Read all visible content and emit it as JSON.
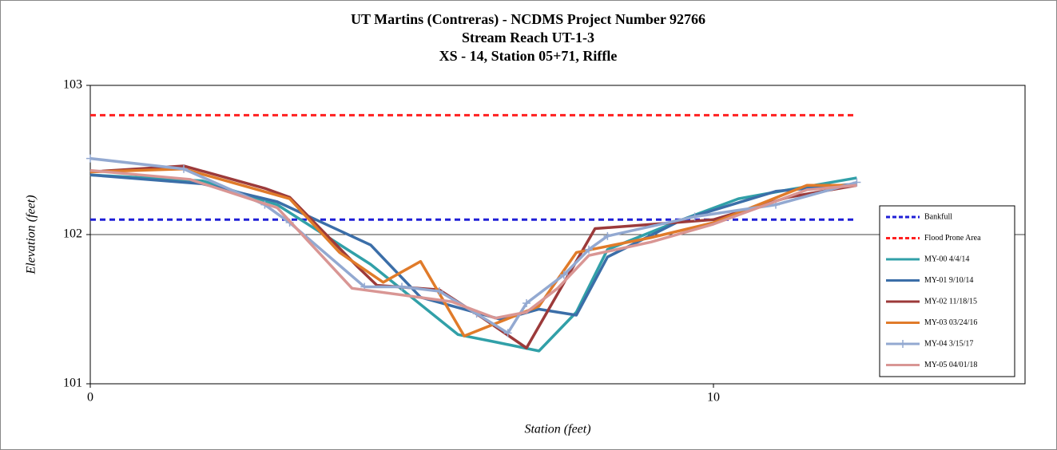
{
  "chart_data": {
    "type": "line",
    "title": [
      "UT Martins (Contreras) - NCDMS Project Number 92766",
      "Stream Reach UT-1-3",
      "XS - 14, Station 05+71, Riffle"
    ],
    "x_label": "Station (feet)",
    "y_label": "Elevation (feet)",
    "xlim": [
      0,
      15
    ],
    "xticks": [
      0,
      10
    ],
    "ylim": [
      101,
      103
    ],
    "yticks": [
      101,
      102,
      103
    ],
    "grid": true,
    "legend": "right",
    "series": [
      {
        "name": "Bankfull",
        "color": "#1f1fd6",
        "dashed": true,
        "x": [
          0,
          12.3
        ],
        "values": [
          102.1,
          102.1
        ]
      },
      {
        "name": "Flood Prone Area",
        "color": "#ff2020",
        "dashed": true,
        "x": [
          0,
          12.3
        ],
        "values": [
          102.8,
          102.8
        ]
      },
      {
        "name": "MY-00 4/4/14",
        "color": "#31a0a8",
        "x": [
          0,
          1.8,
          3,
          4.5,
          5.9,
          6.5,
          7.2,
          7.8,
          8.3,
          9.5,
          10.4,
          11.2,
          12.3
        ],
        "values": [
          102.4,
          102.36,
          102.2,
          101.8,
          101.33,
          101.28,
          101.22,
          101.48,
          101.9,
          102.1,
          102.24,
          102.3,
          102.38
        ]
      },
      {
        "name": "MY-01 9/10/14",
        "color": "#3b6ea8",
        "x": [
          0,
          1.8,
          3,
          4.5,
          5.3,
          6.6,
          7.2,
          7.8,
          8.3,
          9.5,
          11,
          12.3
        ],
        "values": [
          102.4,
          102.34,
          102.22,
          101.93,
          101.58,
          101.43,
          101.5,
          101.46,
          101.85,
          102.1,
          102.29,
          102.34
        ]
      },
      {
        "name": "MY-02 11/18/15",
        "color": "#9c3a3a",
        "x": [
          0,
          1.5,
          2.8,
          3.2,
          4.3,
          4.6,
          5.6,
          6.3,
          7.0,
          8.1,
          10,
          11.2,
          12.3
        ],
        "values": [
          102.42,
          102.46,
          102.31,
          102.25,
          101.78,
          101.66,
          101.63,
          101.44,
          101.24,
          102.04,
          102.1,
          102.25,
          102.33
        ]
      },
      {
        "name": "MY-03 03/24/16",
        "color": "#e07b2a",
        "x": [
          0,
          1.5,
          3.2,
          4.0,
          4.7,
          5.3,
          6.0,
          6.6,
          7.2,
          7.8,
          9,
          10,
          11.5,
          12.3
        ],
        "values": [
          102.42,
          102.44,
          102.24,
          101.88,
          101.68,
          101.82,
          101.32,
          101.42,
          101.52,
          101.88,
          101.98,
          102.08,
          102.33,
          102.33
        ]
      },
      {
        "name": "MY-04 3/15/17",
        "color": "#93a9d1",
        "markers": true,
        "x": [
          0,
          1.5,
          2.8,
          3.2,
          4.4,
          5,
          5.6,
          6.2,
          6.7,
          7.0,
          7.6,
          8.0,
          8.3,
          9.7,
          11,
          12.3
        ],
        "values": [
          102.51,
          102.44,
          102.2,
          102.08,
          101.65,
          101.65,
          101.62,
          101.47,
          101.34,
          101.54,
          101.73,
          101.9,
          101.99,
          102.12,
          102.2,
          102.35
        ]
      },
      {
        "name": "MY-05 04/01/18",
        "color": "#d99694",
        "x": [
          0,
          1.6,
          3,
          4.2,
          5.8,
          6.5,
          7.0,
          7.5,
          8.0,
          9,
          10,
          11.5,
          12.3
        ],
        "values": [
          102.43,
          102.37,
          102.18,
          101.64,
          101.55,
          101.44,
          101.48,
          101.64,
          101.86,
          101.95,
          102.07,
          102.3,
          102.33
        ]
      }
    ]
  }
}
